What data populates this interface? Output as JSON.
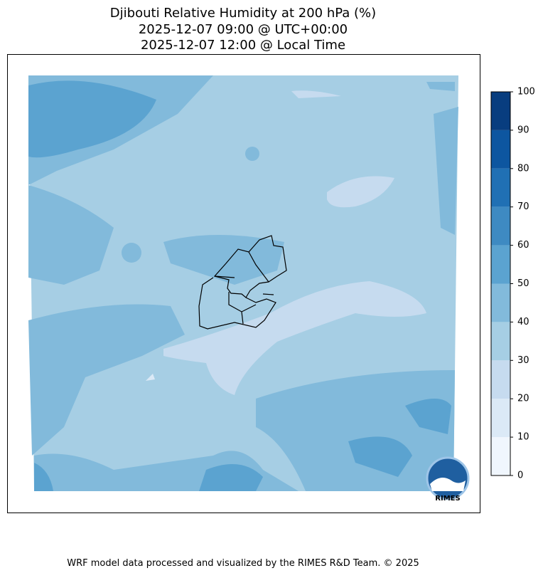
{
  "title": [
    "Djibouti Relative Humidity at 200 hPa (%)",
    "2025-12-07 09:00 @ UTC+00:00",
    "2025-12-07 12:00 @ Local Time"
  ],
  "colorbar": {
    "ticks": [
      0,
      10,
      20,
      30,
      40,
      50,
      60,
      70,
      80,
      90,
      100
    ],
    "colors": [
      "#f0f6fd",
      "#dbe9f6",
      "#c6dbef",
      "#a6cee4",
      "#82badb",
      "#5ba3d0",
      "#3e8ac2",
      "#2070b4",
      "#0d56a0",
      "#083d7f"
    ]
  },
  "logo_text": "RIMES",
  "footer": "WRF model data processed and visualized by the RIMES R&D Team. © 2025"
}
